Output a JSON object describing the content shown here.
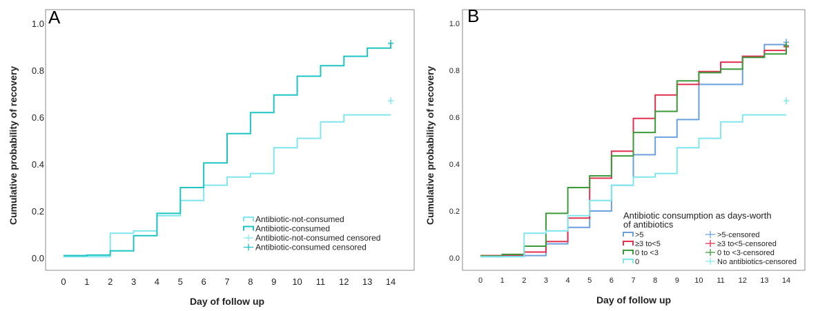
{
  "chart_data": [
    {
      "type": "line",
      "panel_label": "A",
      "title": "",
      "xlabel": "Day of follow up",
      "ylabel": "Cumulative probability of recovery",
      "xlim": [
        0,
        14
      ],
      "ylim": [
        0,
        1.0
      ],
      "x_ticks": [
        "0",
        "1",
        "2",
        "3",
        "4",
        "5",
        "6",
        "7",
        "8",
        "9",
        "10",
        "11",
        "12",
        "13",
        "14"
      ],
      "y_ticks": [
        "0.0",
        "0.2",
        "0.4",
        "0.6",
        "0.8",
        "1.0"
      ],
      "grid": false,
      "legend_position": "bottom-right",
      "legend": [
        {
          "label": "Antibiotic-not-consumed",
          "kind": "line",
          "color": "#7fe6ee"
        },
        {
          "label": "Antibiotic-consumed",
          "kind": "line",
          "color": "#1ec3c3"
        },
        {
          "label": "Antibiotic-not-consumed censored",
          "kind": "cross",
          "color": "#7fe6ee"
        },
        {
          "label": "Antibiotic-consumed censored",
          "kind": "cross",
          "color": "#1ec3c3"
        }
      ],
      "series": [
        {
          "name": "Antibiotic-not-consumed",
          "color": "#7fe6ee",
          "x": [
            0,
            1,
            2,
            3,
            4,
            5,
            6,
            7,
            8,
            9,
            10,
            11,
            12,
            13,
            14
          ],
          "y": [
            0.005,
            0.005,
            0.105,
            0.115,
            0.18,
            0.245,
            0.31,
            0.345,
            0.36,
            0.47,
            0.51,
            0.58,
            0.61,
            0.61,
            0.61
          ],
          "censored": [
            [
              14,
              0.67
            ]
          ]
        },
        {
          "name": "Antibiotic-consumed",
          "color": "#1ec3c3",
          "x": [
            0,
            1,
            2,
            3,
            4,
            5,
            6,
            7,
            8,
            9,
            10,
            11,
            12,
            13,
            14
          ],
          "y": [
            0.01,
            0.012,
            0.03,
            0.095,
            0.19,
            0.3,
            0.405,
            0.53,
            0.62,
            0.695,
            0.775,
            0.82,
            0.86,
            0.895,
            0.915
          ],
          "censored": [
            [
              14,
              0.915
            ]
          ]
        }
      ]
    },
    {
      "type": "line",
      "panel_label": "B",
      "title": "",
      "xlabel": "Day of follow up",
      "ylabel": "Cumulative probability of recovery",
      "xlim": [
        0,
        14
      ],
      "ylim": [
        0,
        1.0
      ],
      "x_ticks": [
        "0",
        "1",
        "2",
        "3",
        "4",
        "5",
        "6",
        "7",
        "8",
        "9",
        "10",
        "11",
        "12",
        "13",
        "14"
      ],
      "y_ticks": [
        "0.0",
        "0.2",
        "0.4",
        "0.6",
        "0.8",
        "1.0"
      ],
      "grid": false,
      "legend_title": "Antibiotic consumption as days-worth of antibiotics",
      "legend_title_lines": [
        "Antibiotic consumption as days-worth",
        "of antibiotics"
      ],
      "legend_position": "bottom-right",
      "legend": [
        {
          "label": ">5",
          "kind": "line",
          "color": "#6a9fe0"
        },
        {
          "label": ">5-censored",
          "kind": "cross",
          "color": "#6a9fe0"
        },
        {
          "label": "≥3 to<5",
          "kind": "line",
          "color": "#e0304e"
        },
        {
          "label": "≥3 to<5-censored",
          "kind": "cross",
          "color": "#e0304e"
        },
        {
          "label": "0 to <3",
          "kind": "line",
          "color": "#3a9a3a"
        },
        {
          "label": "0 to <3-censored",
          "kind": "cross",
          "color": "#3a9a3a"
        },
        {
          "label": "0",
          "kind": "line",
          "color": "#7fe6ee"
        },
        {
          "label": "No antibiotics-censored",
          "kind": "cross",
          "color": "#7fe6ee"
        }
      ],
      "series": [
        {
          "name": ">5",
          "color": "#6a9fe0",
          "x": [
            0,
            1,
            2,
            3,
            4,
            5,
            6,
            7,
            8,
            9,
            10,
            11,
            12,
            13,
            14
          ],
          "y": [
            0.005,
            0.008,
            0.01,
            0.06,
            0.13,
            0.2,
            0.31,
            0.44,
            0.515,
            0.59,
            0.74,
            0.74,
            0.86,
            0.91,
            0.915
          ],
          "censored": [
            [
              14,
              0.92
            ]
          ]
        },
        {
          "name": "≥3 to<5",
          "color": "#e0304e",
          "x": [
            0,
            1,
            2,
            3,
            4,
            5,
            6,
            7,
            8,
            9,
            10,
            11,
            12,
            13,
            14
          ],
          "y": [
            0.01,
            0.012,
            0.025,
            0.07,
            0.17,
            0.34,
            0.455,
            0.595,
            0.695,
            0.74,
            0.795,
            0.835,
            0.86,
            0.885,
            0.9
          ],
          "censored": [
            [
              14,
              0.9
            ]
          ]
        },
        {
          "name": "0 to <3",
          "color": "#3a9a3a",
          "x": [
            0,
            1,
            2,
            3,
            4,
            5,
            6,
            7,
            8,
            9,
            10,
            11,
            12,
            13,
            14
          ],
          "y": [
            0.008,
            0.015,
            0.05,
            0.19,
            0.3,
            0.35,
            0.435,
            0.535,
            0.625,
            0.755,
            0.79,
            0.805,
            0.855,
            0.87,
            0.905
          ],
          "censored": [
            [
              14,
              0.905
            ]
          ]
        },
        {
          "name": "0",
          "color": "#7fe6ee",
          "x": [
            0,
            1,
            2,
            3,
            4,
            5,
            6,
            7,
            8,
            9,
            10,
            11,
            12,
            13,
            14
          ],
          "y": [
            0.005,
            0.005,
            0.105,
            0.115,
            0.18,
            0.245,
            0.31,
            0.345,
            0.36,
            0.47,
            0.51,
            0.58,
            0.61,
            0.61,
            0.61
          ],
          "censored": [
            [
              14,
              0.67
            ]
          ]
        }
      ]
    }
  ]
}
